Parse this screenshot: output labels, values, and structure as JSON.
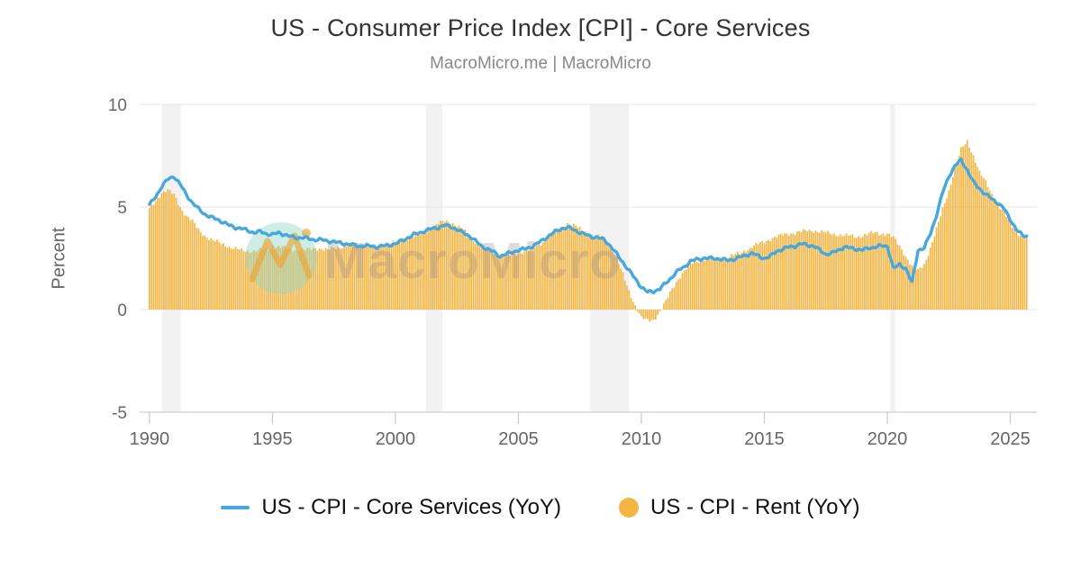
{
  "header": {
    "title": "US - Consumer Price Index [CPI] - Core Services",
    "subtitle": "MacroMicro.me | MacroMicro"
  },
  "watermark": {
    "text": "MacroMicro",
    "logo": "macromicro-mountain-logo"
  },
  "legend": [
    {
      "label": "US - CPI - Core Services (YoY)",
      "type": "line",
      "color": "#46A8DC"
    },
    {
      "label": "US - CPI - Rent (YoY)",
      "type": "circle",
      "color": "#F5B545"
    }
  ],
  "chart_data": {
    "type": "line+bar",
    "title": "US - Consumer Price Index [CPI] - Core Services",
    "xlabel": "",
    "ylabel": "Percent",
    "ylim": [
      -5,
      10
    ],
    "xlim": [
      1989.6,
      2026.08
    ],
    "y_ticks": [
      10,
      5,
      0,
      -5
    ],
    "x_ticks": [
      1990,
      1995,
      2000,
      2005,
      2010,
      2015,
      2020,
      2025
    ],
    "grid": true,
    "legend_position": "bottom",
    "frequency": "quarterly estimates read from chart (monthly bars in source)",
    "x_start": 1990.0,
    "x_step": 0.25,
    "x_end": 2025.67,
    "recessions": [
      [
        1990.5,
        1991.27
      ],
      [
        2001.23,
        2001.92
      ],
      [
        2007.92,
        2009.5
      ],
      [
        2020.12,
        2020.32
      ]
    ],
    "band_color": "#f2f2f2",
    "styles": {
      "grid_line": "#e7e7e7",
      "axis_line": "#cfcfcf",
      "tick_mark": "#cccccc",
      "tick_label": "#666666",
      "watermark_text_fill": "rgba(130,130,130,0.28)",
      "logo_circle_fill": "rgba(147,214,198,0.45)",
      "logo_mark_stroke": "rgba(236,167,59,0.7)"
    },
    "series": [
      {
        "name": "US - CPI - Core Services (YoY)",
        "type": "line",
        "color": "#46A8DC",
        "values": [
          5.1,
          5.5,
          6.0,
          6.35,
          6.5,
          6.1,
          5.6,
          5.2,
          4.9,
          4.65,
          4.5,
          4.4,
          4.25,
          4.1,
          4.0,
          3.95,
          3.85,
          3.75,
          3.8,
          3.7,
          3.65,
          3.75,
          3.65,
          3.55,
          3.5,
          3.5,
          3.45,
          3.4,
          3.4,
          3.35,
          3.3,
          3.25,
          3.2,
          3.15,
          3.1,
          3.1,
          3.1,
          3.05,
          3.1,
          3.15,
          3.2,
          3.35,
          3.5,
          3.65,
          3.75,
          3.85,
          3.95,
          4.0,
          4.1,
          4.05,
          3.9,
          3.75,
          3.6,
          3.35,
          3.1,
          2.95,
          2.8,
          2.6,
          2.7,
          2.8,
          2.9,
          2.95,
          3.05,
          3.2,
          3.4,
          3.6,
          3.8,
          3.95,
          4.0,
          3.9,
          3.75,
          3.65,
          3.55,
          3.5,
          3.4,
          3.1,
          2.7,
          2.3,
          1.9,
          1.5,
          1.1,
          0.85,
          0.9,
          1.0,
          1.3,
          1.6,
          1.9,
          2.1,
          2.35,
          2.45,
          2.5,
          2.5,
          2.5,
          2.45,
          2.4,
          2.45,
          2.55,
          2.65,
          2.75,
          2.6,
          2.5,
          2.6,
          2.85,
          2.95,
          3.05,
          3.1,
          3.2,
          3.15,
          3.1,
          2.9,
          2.7,
          2.75,
          2.9,
          3.05,
          3.0,
          2.95,
          2.9,
          3.0,
          3.05,
          3.1,
          3.1,
          2.0,
          2.2,
          2.0,
          1.3,
          2.9,
          3.0,
          3.7,
          4.6,
          5.7,
          6.5,
          7.0,
          7.3,
          6.8,
          6.2,
          5.9,
          5.6,
          5.4,
          5.2,
          4.9,
          4.4,
          3.9,
          3.6
        ]
      },
      {
        "name": "US - CPI - Rent (YoY)",
        "type": "bar",
        "color": "#F5B545",
        "values": [
          4.9,
          5.3,
          5.7,
          5.8,
          5.6,
          5.0,
          4.55,
          4.3,
          3.9,
          3.6,
          3.4,
          3.3,
          3.2,
          3.05,
          2.95,
          2.9,
          2.85,
          2.85,
          2.9,
          2.95,
          3.0,
          3.05,
          3.0,
          2.95,
          2.9,
          2.9,
          2.95,
          3.0,
          2.95,
          2.9,
          3.0,
          3.05,
          3.1,
          3.15,
          3.2,
          3.15,
          3.1,
          3.05,
          3.1,
          3.2,
          3.3,
          3.4,
          3.5,
          3.6,
          3.65,
          3.8,
          4.0,
          4.2,
          4.3,
          4.25,
          4.1,
          3.9,
          3.6,
          3.3,
          3.1,
          2.9,
          2.75,
          2.65,
          2.6,
          2.65,
          2.75,
          2.85,
          2.95,
          3.1,
          3.3,
          3.55,
          3.8,
          4.0,
          4.2,
          4.1,
          3.95,
          3.7,
          3.6,
          3.55,
          3.45,
          3.1,
          2.5,
          1.7,
          0.9,
          0.2,
          -0.4,
          -0.55,
          -0.5,
          -0.1,
          0.4,
          1.0,
          1.5,
          1.9,
          2.2,
          2.35,
          2.45,
          2.5,
          2.45,
          2.5,
          2.55,
          2.65,
          2.75,
          2.9,
          3.05,
          3.2,
          3.3,
          3.45,
          3.55,
          3.65,
          3.7,
          3.75,
          3.8,
          3.85,
          3.85,
          3.8,
          3.75,
          3.7,
          3.65,
          3.6,
          3.6,
          3.55,
          3.6,
          3.7,
          3.75,
          3.7,
          3.7,
          3.5,
          3.1,
          2.6,
          2.1,
          1.9,
          2.2,
          3.0,
          3.9,
          4.9,
          5.8,
          6.9,
          7.8,
          8.2,
          7.5,
          6.7,
          6.2,
          5.6,
          5.1,
          4.7,
          4.2,
          3.8,
          3.5
        ]
      }
    ]
  }
}
